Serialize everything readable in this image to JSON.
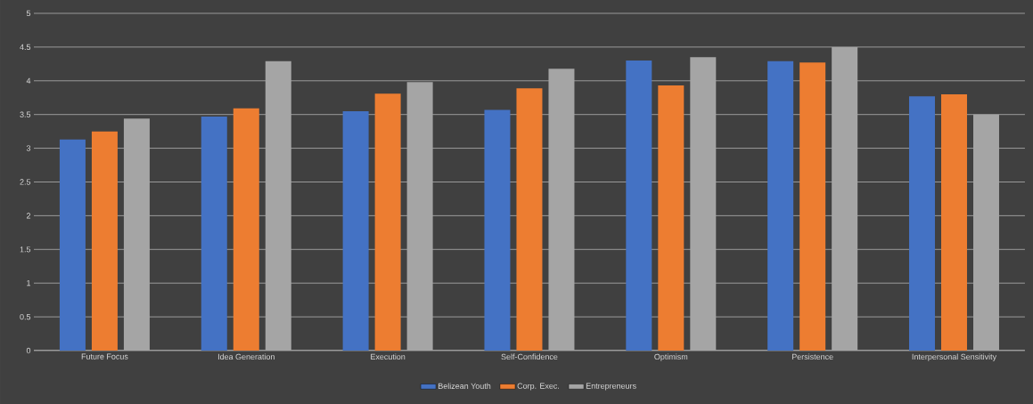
{
  "chart_data": {
    "type": "bar",
    "categories": [
      "Future Focus",
      "Idea Generation",
      "Execution",
      "Self-Confidence",
      "Optimism",
      "Persistence",
      "Interpersonal Sensitivity"
    ],
    "series": [
      {
        "name": "Belizean Youth",
        "color": "#4472c4",
        "values": [
          3.13,
          3.47,
          3.55,
          3.57,
          4.3,
          4.29,
          3.77
        ]
      },
      {
        "name": "Corp. Exec.",
        "color": "#ed7d31",
        "values": [
          3.25,
          3.59,
          3.81,
          3.89,
          3.93,
          4.27,
          3.8
        ]
      },
      {
        "name": "Entrepreneurs",
        "color": "#a5a5a5",
        "values": [
          3.44,
          4.29,
          3.98,
          4.18,
          4.35,
          4.5,
          3.5
        ]
      }
    ],
    "ylim": [
      0,
      5
    ],
    "yticks": [
      0,
      0.5,
      1,
      1.5,
      2,
      2.5,
      3,
      3.5,
      4,
      4.5,
      5
    ],
    "grid": "y",
    "legend": "bottom"
  }
}
